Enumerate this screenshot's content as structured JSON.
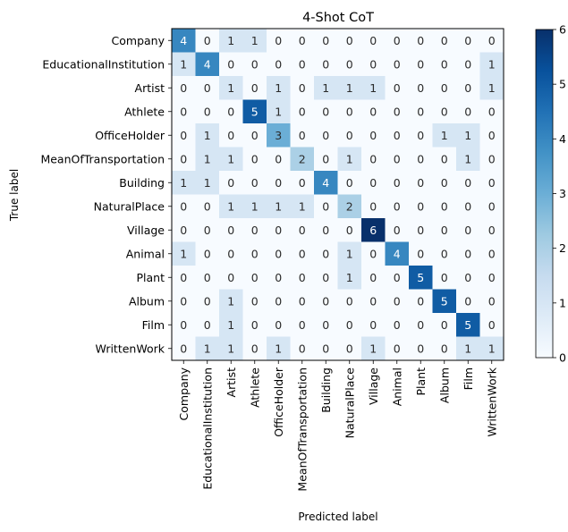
{
  "chart_data": {
    "type": "heatmap",
    "title": "4-Shot CoT",
    "xlabel": "Predicted label",
    "ylabel": "True label",
    "labels": [
      "Company",
      "EducationalInstitution",
      "Artist",
      "Athlete",
      "OfficeHolder",
      "MeanOfTransportation",
      "Building",
      "NaturalPlace",
      "Village",
      "Animal",
      "Plant",
      "Album",
      "Film",
      "WrittenWork"
    ],
    "matrix": [
      [
        4,
        0,
        1,
        1,
        0,
        0,
        0,
        0,
        0,
        0,
        0,
        0,
        0,
        0
      ],
      [
        1,
        4,
        0,
        0,
        0,
        0,
        0,
        0,
        0,
        0,
        0,
        0,
        0,
        1
      ],
      [
        0,
        0,
        1,
        0,
        1,
        0,
        1,
        1,
        1,
        0,
        0,
        0,
        0,
        1
      ],
      [
        0,
        0,
        0,
        5,
        1,
        0,
        0,
        0,
        0,
        0,
        0,
        0,
        0,
        0
      ],
      [
        0,
        1,
        0,
        0,
        3,
        0,
        0,
        0,
        0,
        0,
        0,
        1,
        1,
        0
      ],
      [
        0,
        1,
        1,
        0,
        0,
        2,
        0,
        1,
        0,
        0,
        0,
        0,
        1,
        0
      ],
      [
        1,
        1,
        0,
        0,
        0,
        0,
        4,
        0,
        0,
        0,
        0,
        0,
        0,
        0
      ],
      [
        0,
        0,
        1,
        1,
        1,
        1,
        0,
        2,
        0,
        0,
        0,
        0,
        0,
        0
      ],
      [
        0,
        0,
        0,
        0,
        0,
        0,
        0,
        0,
        6,
        0,
        0,
        0,
        0,
        0
      ],
      [
        1,
        0,
        0,
        0,
        0,
        0,
        0,
        1,
        0,
        4,
        0,
        0,
        0,
        0
      ],
      [
        0,
        0,
        0,
        0,
        0,
        0,
        0,
        1,
        0,
        0,
        5,
        0,
        0,
        0
      ],
      [
        0,
        0,
        1,
        0,
        0,
        0,
        0,
        0,
        0,
        0,
        0,
        5,
        0,
        0
      ],
      [
        0,
        0,
        1,
        0,
        0,
        0,
        0,
        0,
        0,
        0,
        0,
        0,
        5,
        0
      ],
      [
        0,
        1,
        1,
        0,
        1,
        0,
        0,
        0,
        1,
        0,
        0,
        0,
        1,
        1
      ]
    ],
    "colorbar": {
      "min": 0,
      "max": 6,
      "ticks": [
        "0",
        "1",
        "2",
        "3",
        "4",
        "5",
        "6"
      ],
      "colormap": "Blues"
    }
  }
}
